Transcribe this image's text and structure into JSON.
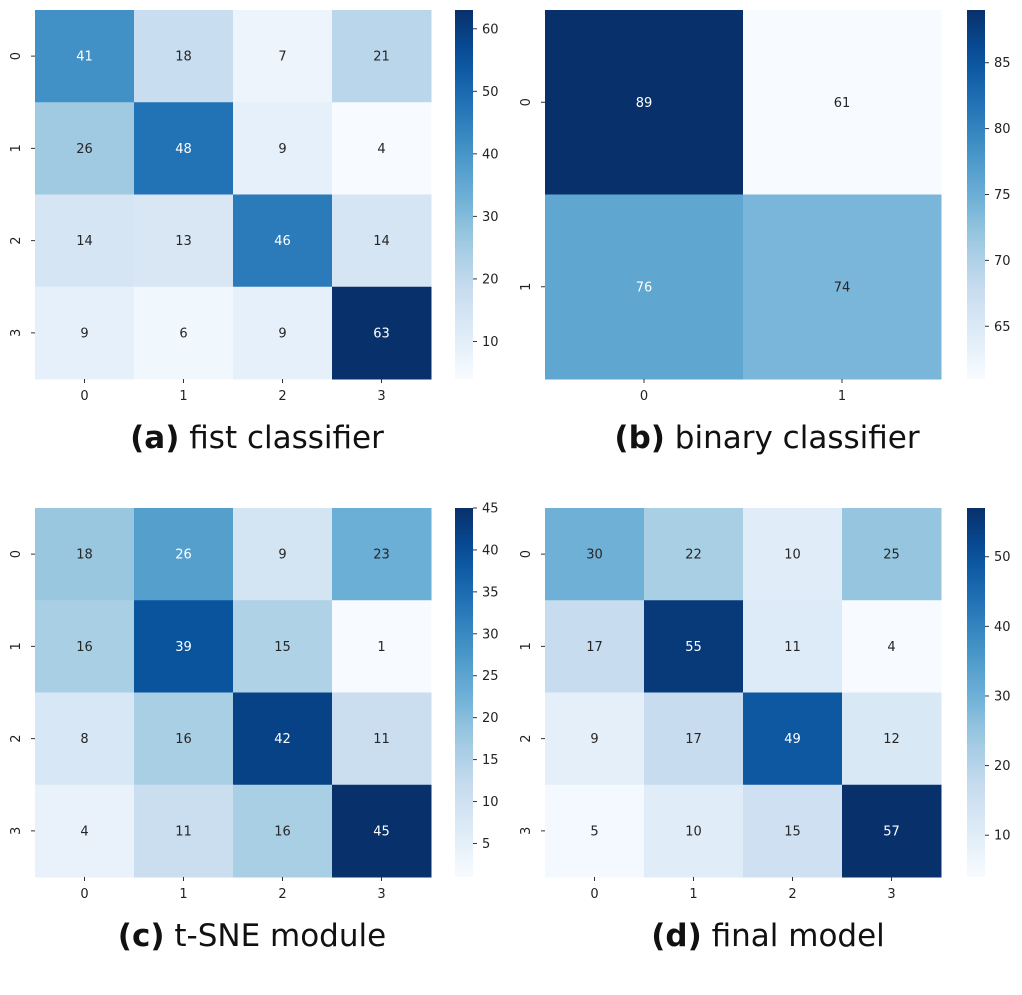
{
  "chart_data": [
    {
      "type": "heatmap",
      "caption_letter": "(a)",
      "caption_text": "fist classifier",
      "row_labels": [
        "0",
        "1",
        "2",
        "3"
      ],
      "col_labels": [
        "0",
        "1",
        "2",
        "3"
      ],
      "values": [
        [
          41,
          18,
          7,
          21
        ],
        [
          26,
          48,
          9,
          4
        ],
        [
          14,
          13,
          46,
          14
        ],
        [
          9,
          6,
          9,
          63
        ]
      ],
      "colormap": "Blues",
      "vmin": 4,
      "vmax": 63,
      "colorbar_ticks": [
        "10",
        "20",
        "30",
        "40",
        "50",
        "60"
      ]
    },
    {
      "type": "heatmap",
      "caption_letter": "(b)",
      "caption_text": "binary classifier",
      "row_labels": [
        "0",
        "1"
      ],
      "col_labels": [
        "0",
        "1"
      ],
      "values": [
        [
          89,
          61
        ],
        [
          76,
          74
        ]
      ],
      "colormap": "Blues",
      "vmin": 61,
      "vmax": 89,
      "colorbar_ticks": [
        "65",
        "70",
        "75",
        "80",
        "85"
      ]
    },
    {
      "type": "heatmap",
      "caption_letter": "(c)",
      "caption_text": "t-SNE module",
      "row_labels": [
        "0",
        "1",
        "2",
        "3"
      ],
      "col_labels": [
        "0",
        "1",
        "2",
        "3"
      ],
      "values": [
        [
          18,
          26,
          9,
          23
        ],
        [
          16,
          39,
          15,
          1
        ],
        [
          8,
          16,
          42,
          11
        ],
        [
          4,
          11,
          16,
          45
        ]
      ],
      "colormap": "Blues",
      "vmin": 1,
      "vmax": 45,
      "colorbar_ticks": [
        "5",
        "10",
        "15",
        "20",
        "25",
        "30",
        "35",
        "40",
        "45"
      ]
    },
    {
      "type": "heatmap",
      "caption_letter": "(d)",
      "caption_text": "final model",
      "row_labels": [
        "0",
        "1",
        "2",
        "3"
      ],
      "col_labels": [
        "0",
        "1",
        "2",
        "3"
      ],
      "values": [
        [
          30,
          22,
          10,
          25
        ],
        [
          17,
          55,
          11,
          4
        ],
        [
          9,
          17,
          49,
          12
        ],
        [
          5,
          10,
          15,
          57
        ]
      ],
      "colormap": "Blues",
      "vmin": 4,
      "vmax": 57,
      "colorbar_ticks": [
        "10",
        "20",
        "30",
        "40",
        "50"
      ]
    }
  ]
}
